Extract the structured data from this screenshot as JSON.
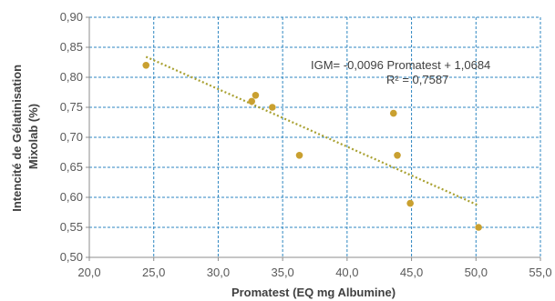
{
  "chart_data": {
    "type": "scatter",
    "xlabel": "Promatest (EQ mg Albumine)",
    "ylabel_lines": [
      "Intencité de Gélatinisation",
      "Mixolab (%)"
    ],
    "xlim": [
      20,
      55
    ],
    "ylim": [
      0.5,
      0.9
    ],
    "x_ticks": [
      20,
      25,
      30,
      35,
      40,
      45,
      50,
      55
    ],
    "y_ticks": [
      0.5,
      0.55,
      0.6,
      0.65,
      0.7,
      0.75,
      0.8,
      0.85,
      0.9
    ],
    "x_tick_labels": [
      "20,0",
      "25,0",
      "30,0",
      "35,0",
      "40,0",
      "45,0",
      "50,0",
      "55,0"
    ],
    "y_tick_labels": [
      "0,50",
      "0,55",
      "0,60",
      "0,65",
      "0,70",
      "0,75",
      "0,80",
      "0,85",
      "0,90"
    ],
    "grid": {
      "horizontal": true,
      "vertical": true,
      "style": "dashed"
    },
    "points": [
      {
        "x": 24.4,
        "y": 0.82
      },
      {
        "x": 32.6,
        "y": 0.76
      },
      {
        "x": 32.9,
        "y": 0.77
      },
      {
        "x": 34.2,
        "y": 0.75
      },
      {
        "x": 36.3,
        "y": 0.67
      },
      {
        "x": 43.6,
        "y": 0.74
      },
      {
        "x": 43.9,
        "y": 0.67
      },
      {
        "x": 44.9,
        "y": 0.59
      },
      {
        "x": 50.2,
        "y": 0.55
      }
    ],
    "trendline": {
      "type": "linear",
      "x_range": [
        24.4,
        50.2
      ],
      "slope": -0.0096,
      "intercept": 1.0684
    },
    "annotation": {
      "equation": "IGM= -0,0096 Promatest + 1,0684",
      "r2": "R² = 0,7587"
    },
    "colors": {
      "points": "#c9a030",
      "trendline": "#a8a030",
      "grid": "#2e86c1",
      "axis": "#8c8c8c"
    }
  }
}
